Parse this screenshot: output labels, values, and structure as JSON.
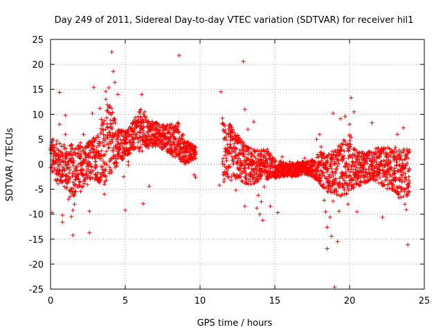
{
  "chart_data": {
    "type": "scatter",
    "title": "Day 249 of 2011, Sidereal Day-to-day VTEC variation (SDTVAR) for receiver hil1",
    "xlabel": "GPS time / hours",
    "ylabel": "SDTVAR / TECUs",
    "xlim": [
      0,
      25
    ],
    "ylim": [
      -25,
      25
    ],
    "xticks": [
      0,
      5,
      10,
      15,
      20,
      25
    ],
    "yticks": [
      -25,
      -20,
      -15,
      -10,
      -5,
      0,
      5,
      10,
      15,
      20,
      25
    ],
    "grid": true,
    "marker": "+",
    "color": "#ff0000",
    "series": [
      {
        "name": "SDTVAR",
        "points": [
          [
            0.1,
            -9.7
          ],
          [
            0.6,
            14.4
          ],
          [
            0.6,
            8.0
          ],
          [
            0.8,
            -10.2
          ],
          [
            0.8,
            -11.6
          ],
          [
            1.0,
            9.8
          ],
          [
            1.0,
            6.0
          ],
          [
            1.2,
            -7.0
          ],
          [
            1.3,
            -6.5
          ],
          [
            1.4,
            -10.5
          ],
          [
            1.5,
            -9.2
          ],
          [
            1.5,
            -14.2
          ],
          [
            1.6,
            -8.0
          ],
          [
            2.0,
            4.3
          ],
          [
            2.2,
            6.0
          ],
          [
            2.6,
            -9.4
          ],
          [
            2.6,
            -13.7
          ],
          [
            2.8,
            10.2
          ],
          [
            2.9,
            15.4
          ],
          [
            3.3,
            11.2
          ],
          [
            3.4,
            9.0
          ],
          [
            3.6,
            -4.0
          ],
          [
            3.6,
            -6.0
          ],
          [
            3.7,
            13.0
          ],
          [
            3.7,
            14.6
          ],
          [
            3.8,
            11.9
          ],
          [
            3.9,
            15.3
          ],
          [
            4.0,
            10.2
          ],
          [
            4.1,
            22.5
          ],
          [
            4.2,
            18.6
          ],
          [
            4.3,
            16.4
          ],
          [
            4.5,
            14.0
          ],
          [
            4.9,
            -2.5
          ],
          [
            5.0,
            -9.2
          ],
          [
            5.2,
            0.5
          ],
          [
            5.2,
            -0.2
          ],
          [
            5.5,
            4.5
          ],
          [
            5.7,
            8.5
          ],
          [
            6.1,
            14.0
          ],
          [
            6.2,
            -7.9
          ],
          [
            6.3,
            10.5
          ],
          [
            6.6,
            -4.4
          ],
          [
            7.0,
            8.0
          ],
          [
            7.3,
            6.5
          ],
          [
            7.6,
            4.0
          ],
          [
            8.0,
            6.2
          ],
          [
            8.3,
            7.5
          ],
          [
            8.6,
            21.8
          ],
          [
            8.9,
            2.5
          ],
          [
            9.6,
            -2.1
          ],
          [
            9.7,
            -2.6
          ],
          [
            11.3,
            -4.2
          ],
          [
            11.4,
            14.5
          ],
          [
            11.5,
            9.2
          ],
          [
            11.6,
            -3.5
          ],
          [
            11.9,
            6.0
          ],
          [
            12.2,
            5.2
          ],
          [
            12.4,
            -5.2
          ],
          [
            12.6,
            5.0
          ],
          [
            12.7,
            -2.5
          ],
          [
            12.9,
            20.6
          ],
          [
            13.0,
            -8.4
          ],
          [
            13.0,
            11.0
          ],
          [
            13.2,
            7.0
          ],
          [
            13.4,
            -4.0
          ],
          [
            13.6,
            8.5
          ],
          [
            13.8,
            -8.8
          ],
          [
            13.9,
            -6.2
          ],
          [
            14.0,
            -10.0
          ],
          [
            14.1,
            -7.5
          ],
          [
            14.2,
            -11.2
          ],
          [
            14.3,
            -4.5
          ],
          [
            14.5,
            3.0
          ],
          [
            14.7,
            -8.4
          ],
          [
            15.2,
            -9.7
          ],
          [
            15.5,
            1.5
          ],
          [
            16.0,
            0.5
          ],
          [
            16.5,
            -1.0
          ],
          [
            17.0,
            1.2
          ],
          [
            17.5,
            -2.5
          ],
          [
            17.8,
            5.0
          ],
          [
            18.0,
            6.0
          ],
          [
            18.1,
            3.5
          ],
          [
            18.3,
            -7.2
          ],
          [
            18.4,
            -9.5
          ],
          [
            18.5,
            -12.6
          ],
          [
            18.5,
            -16.9
          ],
          [
            18.7,
            -10.6
          ],
          [
            18.8,
            -14.4
          ],
          [
            18.9,
            -7.4
          ],
          [
            18.9,
            10.2
          ],
          [
            19.0,
            -24.6
          ],
          [
            19.2,
            -15.5
          ],
          [
            19.3,
            -9.4
          ],
          [
            19.4,
            9.1
          ],
          [
            19.7,
            9.6
          ],
          [
            19.8,
            -5.8
          ],
          [
            19.9,
            -8.0
          ],
          [
            20.0,
            8.0
          ],
          [
            20.1,
            13.3
          ],
          [
            20.3,
            10.5
          ],
          [
            20.5,
            -9.5
          ],
          [
            21.2,
            -3.5
          ],
          [
            21.5,
            8.3
          ],
          [
            22.2,
            -10.6
          ],
          [
            22.5,
            1.5
          ],
          [
            23.0,
            -2.7
          ],
          [
            23.2,
            6.0
          ],
          [
            23.3,
            -6.7
          ],
          [
            23.6,
            7.3
          ],
          [
            23.7,
            -8.0
          ],
          [
            23.8,
            -9.1
          ],
          [
            23.9,
            -16.1
          ],
          [
            23.9,
            -4.0
          ]
        ],
        "dense_envelope": [
          [
            0.0,
            -2.0,
            5.5
          ],
          [
            0.5,
            -4.0,
            4.5
          ],
          [
            1.0,
            -5.0,
            4.0
          ],
          [
            1.5,
            -6.5,
            4.0
          ],
          [
            2.0,
            -5.5,
            4.0
          ],
          [
            2.5,
            -4.0,
            4.5
          ],
          [
            3.0,
            -3.0,
            6.0
          ],
          [
            3.5,
            -4.5,
            9.0
          ],
          [
            4.0,
            -2.0,
            13.0
          ],
          [
            4.5,
            0.0,
            7.0
          ],
          [
            5.0,
            1.5,
            7.0
          ],
          [
            5.5,
            2.5,
            8.5
          ],
          [
            6.0,
            2.5,
            11.0
          ],
          [
            6.5,
            3.0,
            9.0
          ],
          [
            7.0,
            3.5,
            8.5
          ],
          [
            7.5,
            3.0,
            8.0
          ],
          [
            8.0,
            2.0,
            8.0
          ],
          [
            8.5,
            1.0,
            8.5
          ],
          [
            9.0,
            0.0,
            5.0
          ],
          [
            9.7,
            1.0,
            3.5
          ],
          [
            11.5,
            -3.0,
            8.5
          ],
          [
            12.0,
            -3.5,
            8.0
          ],
          [
            12.5,
            -3.0,
            6.0
          ],
          [
            13.0,
            -4.0,
            4.0
          ],
          [
            13.5,
            -4.0,
            3.0
          ],
          [
            14.0,
            -3.5,
            3.0
          ],
          [
            14.5,
            -3.0,
            3.0
          ],
          [
            15.0,
            -3.0,
            1.0
          ],
          [
            15.5,
            -2.5,
            0.5
          ],
          [
            16.0,
            -2.5,
            0.0
          ],
          [
            16.5,
            -2.5,
            0.5
          ],
          [
            17.0,
            -2.0,
            0.5
          ],
          [
            17.5,
            -2.5,
            1.0
          ],
          [
            18.0,
            -4.0,
            2.5
          ],
          [
            18.5,
            -5.5,
            2.0
          ],
          [
            19.0,
            -6.0,
            3.0
          ],
          [
            19.5,
            -6.5,
            4.5
          ],
          [
            20.0,
            -5.5,
            6.5
          ],
          [
            20.5,
            -4.5,
            2.5
          ],
          [
            21.0,
            -4.0,
            2.5
          ],
          [
            21.5,
            -3.0,
            3.0
          ],
          [
            22.0,
            -4.0,
            3.5
          ],
          [
            22.5,
            -5.0,
            3.5
          ],
          [
            23.0,
            -5.5,
            3.5
          ],
          [
            23.5,
            -7.0,
            3.5
          ],
          [
            24.0,
            -6.0,
            3.0
          ]
        ]
      }
    ]
  }
}
